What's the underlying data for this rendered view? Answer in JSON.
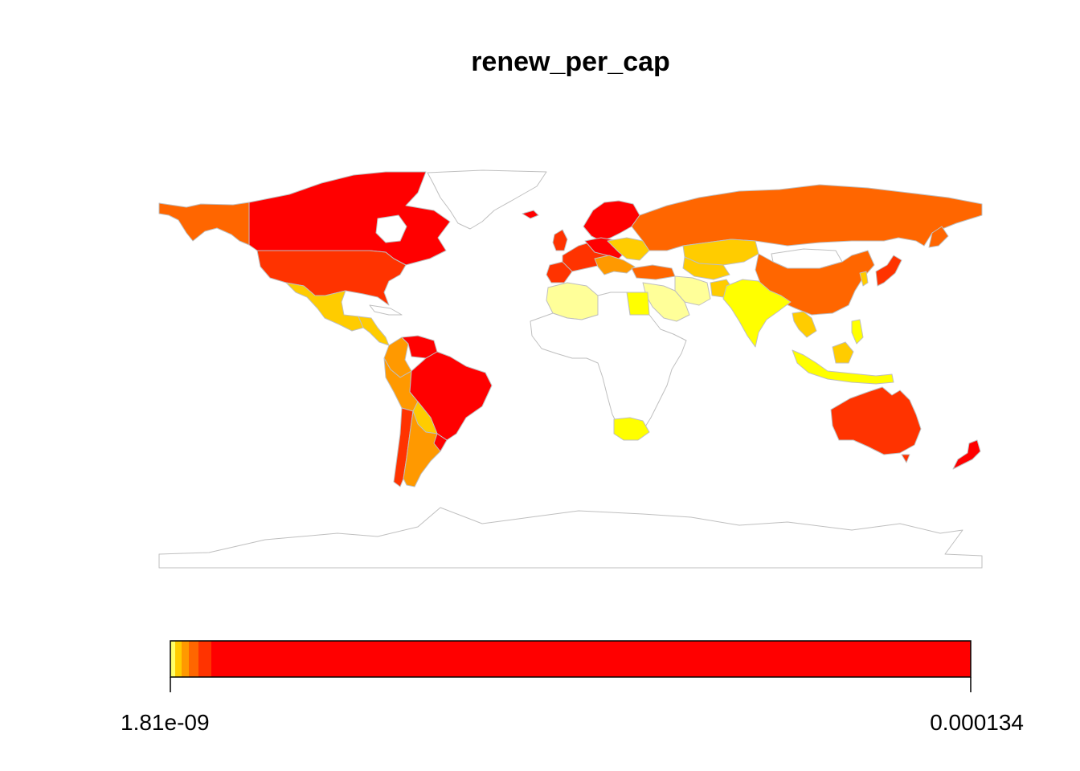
{
  "title": "renew_per_cap",
  "map": {
    "colors": {
      "very_low": "#ffff99",
      "low": "#ffff00",
      "mid_low": "#ffcc00",
      "mid": "#ff9900",
      "mid_high": "#ff6600",
      "high": "#ff3300",
      "highest": "#ff0000",
      "no_data": "#ffffff",
      "border": "#bfbfbf"
    }
  },
  "legend": {
    "min_label": "1.81e-09",
    "max_label": "0.000134",
    "palette": [
      "#ffff66",
      "#ffcc00",
      "#ff9900",
      "#ff6600",
      "#ff3300",
      "#ff0000"
    ]
  }
}
